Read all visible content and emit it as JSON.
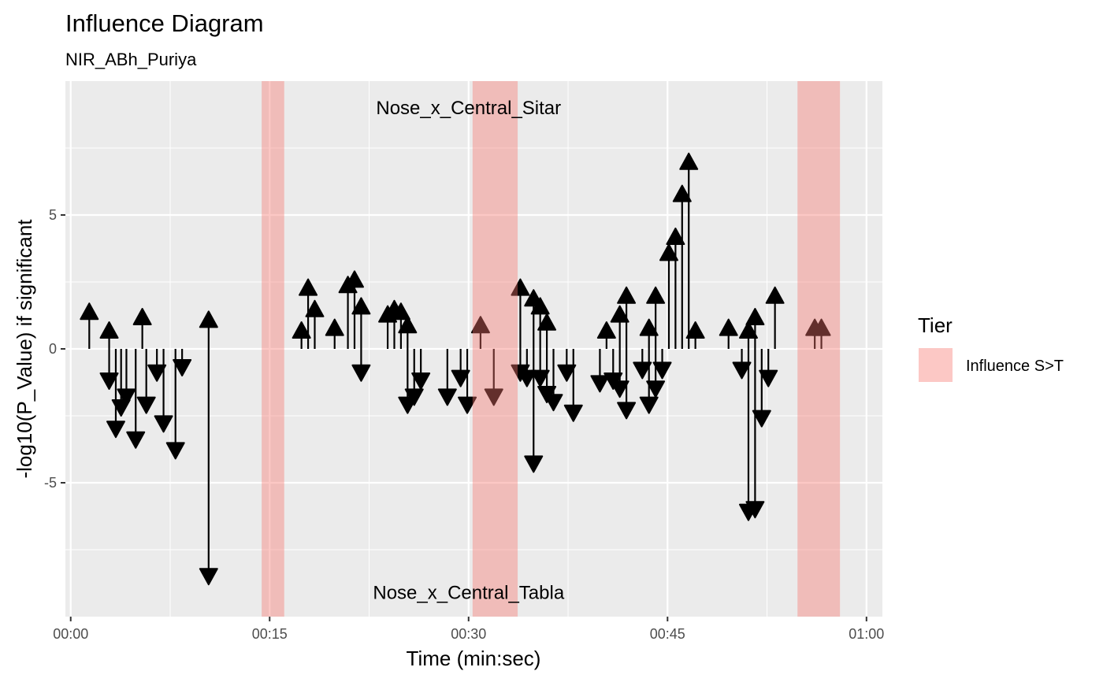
{
  "chart_data": {
    "type": "arrow-segment",
    "title": "Influence Diagram",
    "subtitle": "NIR_ABh_Puriya",
    "xlabel": "Time (min:sec)",
    "ylabel": "-log10(P_Value) if significant",
    "xlim": [
      -0.4,
      61.2
    ],
    "ylim": [
      -10.0,
      10.0
    ],
    "x_ticks": [
      {
        "value": 0,
        "label": "00:00"
      },
      {
        "value": 15,
        "label": "00:15"
      },
      {
        "value": 30,
        "label": "00:30"
      },
      {
        "value": 45,
        "label": "00:45"
      },
      {
        "value": 60,
        "label": "01:00"
      }
    ],
    "y_ticks": [
      {
        "value": 5,
        "label": "5"
      },
      {
        "value": 0,
        "label": "0"
      },
      {
        "value": -5,
        "label": "-5"
      }
    ],
    "grid": true,
    "annotations": [
      {
        "text": "Nose_x_Central_Sitar",
        "x": 30,
        "y": 9.0
      },
      {
        "text": "Nose_x_Central_Tabla",
        "x": 30,
        "y": -9.1
      }
    ],
    "shaded_regions": [
      {
        "tier": "Influence S>T",
        "start": 14.4,
        "end": 16.1
      },
      {
        "tier": "Influence S>T",
        "start": 30.3,
        "end": 33.7
      },
      {
        "tier": "Influence S>T",
        "start": 54.8,
        "end": 58.0
      }
    ],
    "legend": {
      "title": "Tier",
      "position": "right",
      "items": [
        {
          "label": "Influence S>T",
          "color": "#F8766D"
        }
      ]
    },
    "colors": {
      "panel": "#EBEBEB",
      "grid_major": "#FFFFFF",
      "shade": "#F8766D",
      "arrow": "#000000"
    },
    "arrows": [
      {
        "x": 1.4,
        "y": 1.7
      },
      {
        "x": 2.9,
        "y": 1.0
      },
      {
        "x": 2.9,
        "y": -1.5
      },
      {
        "x": 3.4,
        "y": -3.3
      },
      {
        "x": 3.8,
        "y": -2.5
      },
      {
        "x": 4.2,
        "y": -2.1
      },
      {
        "x": 4.9,
        "y": -3.7
      },
      {
        "x": 5.4,
        "y": 1.5
      },
      {
        "x": 5.7,
        "y": -2.4
      },
      {
        "x": 6.5,
        "y": -1.2
      },
      {
        "x": 7.0,
        "y": -3.1
      },
      {
        "x": 7.9,
        "y": -4.1
      },
      {
        "x": 8.4,
        "y": -1.0
      },
      {
        "x": 10.4,
        "y": 1.4
      },
      {
        "x": 10.4,
        "y": -8.8
      },
      {
        "x": 17.4,
        "y": 1.0
      },
      {
        "x": 17.9,
        "y": 2.6
      },
      {
        "x": 18.4,
        "y": 1.8
      },
      {
        "x": 19.9,
        "y": 1.1
      },
      {
        "x": 20.9,
        "y": 2.7
      },
      {
        "x": 21.4,
        "y": 2.9
      },
      {
        "x": 21.9,
        "y": 1.9
      },
      {
        "x": 21.9,
        "y": -1.2
      },
      {
        "x": 23.9,
        "y": 1.6
      },
      {
        "x": 24.4,
        "y": 1.8
      },
      {
        "x": 24.9,
        "y": 1.7
      },
      {
        "x": 25.4,
        "y": 1.2
      },
      {
        "x": 25.4,
        "y": -2.4
      },
      {
        "x": 25.9,
        "y": -2.1
      },
      {
        "x": 26.4,
        "y": -1.5
      },
      {
        "x": 28.4,
        "y": -2.1
      },
      {
        "x": 29.4,
        "y": -1.4
      },
      {
        "x": 29.9,
        "y": -2.4
      },
      {
        "x": 30.9,
        "y": 1.2
      },
      {
        "x": 31.9,
        "y": -2.1
      },
      {
        "x": 33.9,
        "y": 2.6
      },
      {
        "x": 33.9,
        "y": -1.2
      },
      {
        "x": 34.4,
        "y": -1.4
      },
      {
        "x": 34.9,
        "y": 2.2
      },
      {
        "x": 34.9,
        "y": -4.6
      },
      {
        "x": 35.4,
        "y": 1.9
      },
      {
        "x": 35.4,
        "y": -1.4
      },
      {
        "x": 35.9,
        "y": 1.3
      },
      {
        "x": 35.9,
        "y": -2.0
      },
      {
        "x": 36.4,
        "y": -2.3
      },
      {
        "x": 37.4,
        "y": -1.2
      },
      {
        "x": 37.9,
        "y": -2.7
      },
      {
        "x": 39.9,
        "y": -1.6
      },
      {
        "x": 40.4,
        "y": 1.0
      },
      {
        "x": 40.9,
        "y": -1.5
      },
      {
        "x": 41.4,
        "y": 1.6
      },
      {
        "x": 41.4,
        "y": -1.8
      },
      {
        "x": 41.9,
        "y": 2.3
      },
      {
        "x": 41.9,
        "y": -2.6
      },
      {
        "x": 43.1,
        "y": -1.1
      },
      {
        "x": 43.6,
        "y": 1.1
      },
      {
        "x": 43.6,
        "y": -2.4
      },
      {
        "x": 44.1,
        "y": 2.3
      },
      {
        "x": 44.1,
        "y": -1.8
      },
      {
        "x": 44.6,
        "y": -1.1
      },
      {
        "x": 45.1,
        "y": 3.9
      },
      {
        "x": 45.6,
        "y": 4.5
      },
      {
        "x": 46.1,
        "y": 6.1
      },
      {
        "x": 46.6,
        "y": 7.3
      },
      {
        "x": 47.1,
        "y": 1.0
      },
      {
        "x": 49.6,
        "y": 1.1
      },
      {
        "x": 50.6,
        "y": -1.1
      },
      {
        "x": 51.1,
        "y": 1.0
      },
      {
        "x": 51.1,
        "y": -6.4
      },
      {
        "x": 51.6,
        "y": 1.5
      },
      {
        "x": 51.6,
        "y": -6.3
      },
      {
        "x": 52.1,
        "y": -2.9
      },
      {
        "x": 52.6,
        "y": -1.4
      },
      {
        "x": 53.1,
        "y": 2.3
      },
      {
        "x": 56.1,
        "y": 1.1
      },
      {
        "x": 56.6,
        "y": 1.1
      }
    ]
  }
}
